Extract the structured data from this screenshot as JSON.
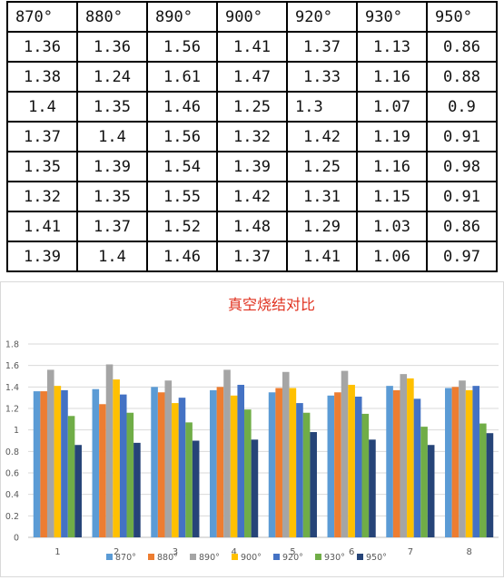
{
  "table": {
    "headers": [
      "870°",
      "880°",
      "890°",
      "900°",
      "920°",
      "930°",
      "950°"
    ],
    "rows": [
      [
        "1.36",
        "1.36",
        "1.56",
        "1.41",
        "1.37",
        "1.13",
        "0.86"
      ],
      [
        "1.38",
        "1.24",
        "1.61",
        "1.47",
        "1.33",
        "1.16",
        "0.88"
      ],
      [
        "1.4",
        "1.35",
        "1.46",
        "1.25",
        "1.3",
        "1.07",
        "0.9"
      ],
      [
        "1.37",
        "1.4",
        "1.56",
        "1.32",
        "1.42",
        "1.19",
        "0.91"
      ],
      [
        "1.35",
        "1.39",
        "1.54",
        "1.39",
        "1.25",
        "1.16",
        "0.98"
      ],
      [
        "1.32",
        "1.35",
        "1.55",
        "1.42",
        "1.31",
        "1.15",
        "0.91"
      ],
      [
        "1.41",
        "1.37",
        "1.52",
        "1.48",
        "1.29",
        "1.03",
        "0.86"
      ],
      [
        "1.39",
        "1.4",
        "1.46",
        "1.37",
        "1.41",
        "1.06",
        "0.97"
      ]
    ]
  },
  "chart_data": {
    "type": "bar",
    "title": "真空烧结对比",
    "categories": [
      "1",
      "2",
      "3",
      "4",
      "5",
      "6",
      "7",
      "8"
    ],
    "ylim": [
      0,
      1.8
    ],
    "yticks": [
      "0",
      "0.2",
      "0.4",
      "0.6",
      "0.8",
      "1",
      "1.2",
      "1.4",
      "1.6",
      "1.8"
    ],
    "grid": true,
    "legend": "bottom",
    "series": [
      {
        "name": "870°",
        "color": "#5b9bd5",
        "values": [
          1.36,
          1.38,
          1.4,
          1.37,
          1.35,
          1.32,
          1.41,
          1.39
        ]
      },
      {
        "name": "880°",
        "color": "#ed7d31",
        "values": [
          1.36,
          1.24,
          1.35,
          1.4,
          1.39,
          1.35,
          1.37,
          1.4
        ]
      },
      {
        "name": "890°",
        "color": "#a5a5a5",
        "values": [
          1.56,
          1.61,
          1.46,
          1.56,
          1.54,
          1.55,
          1.52,
          1.46
        ]
      },
      {
        "name": "900°",
        "color": "#ffc000",
        "values": [
          1.41,
          1.47,
          1.25,
          1.32,
          1.39,
          1.42,
          1.48,
          1.37
        ]
      },
      {
        "name": "920°",
        "color": "#4472c4",
        "values": [
          1.37,
          1.33,
          1.3,
          1.42,
          1.25,
          1.31,
          1.29,
          1.41
        ]
      },
      {
        "name": "930°",
        "color": "#70ad47",
        "values": [
          1.13,
          1.16,
          1.07,
          1.19,
          1.16,
          1.15,
          1.03,
          1.06
        ]
      },
      {
        "name": "950°",
        "color": "#264478",
        "values": [
          0.86,
          0.88,
          0.9,
          0.91,
          0.98,
          0.91,
          0.86,
          0.97
        ]
      }
    ]
  }
}
